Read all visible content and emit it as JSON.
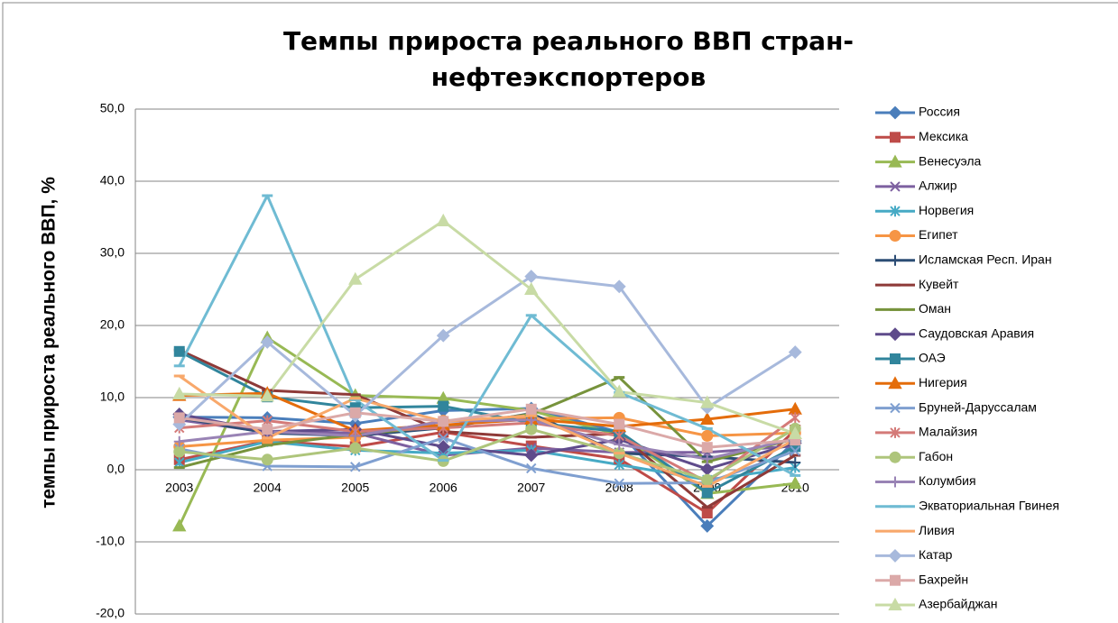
{
  "chart_data": {
    "type": "line",
    "title": "Темпы прироста реального ВВП стран-нефтеэкспортеров",
    "y_label": "темпы прироста реального ВВП, %",
    "categories": [
      "2003",
      "2004",
      "2005",
      "2006",
      "2007",
      "2008",
      "2009",
      "2010"
    ],
    "ylim": [
      -20,
      50
    ],
    "yticks": [
      {
        "value": -20,
        "label": "-20,0"
      },
      {
        "value": -10,
        "label": "-10,0"
      },
      {
        "value": 0,
        "label": "0,0"
      },
      {
        "value": 10,
        "label": "10,0"
      },
      {
        "value": 20,
        "label": "20,0"
      },
      {
        "value": 30,
        "label": "30,0"
      },
      {
        "value": 40,
        "label": "40,0"
      },
      {
        "value": 50,
        "label": "50,0"
      }
    ],
    "grid": true,
    "legend": "right",
    "series": [
      {
        "name": "Россия",
        "color": "#4a7ebb",
        "marker": "diamond",
        "values": [
          7.3,
          7.2,
          6.4,
          8.2,
          8.5,
          5.2,
          -7.8,
          4.0
        ]
      },
      {
        "name": "Мексика",
        "color": "#be4b48",
        "marker": "square",
        "values": [
          1.4,
          4.0,
          3.2,
          5.2,
          3.3,
          1.5,
          -6.0,
          5.5
        ]
      },
      {
        "name": "Венесуэла",
        "color": "#98b954",
        "marker": "triangle",
        "values": [
          -7.8,
          18.3,
          10.3,
          9.9,
          8.2,
          4.8,
          -3.3,
          -1.9
        ]
      },
      {
        "name": "Алжир",
        "color": "#7d60a0",
        "marker": "x",
        "values": [
          6.9,
          5.2,
          5.1,
          2.0,
          3.0,
          2.4,
          2.4,
          3.3
        ]
      },
      {
        "name": "Норвегия",
        "color": "#46aac5",
        "marker": "star",
        "values": [
          1.0,
          3.9,
          2.7,
          2.3,
          2.7,
          0.7,
          -1.4,
          0.3
        ]
      },
      {
        "name": "Египет",
        "color": "#f69545",
        "marker": "circle",
        "values": [
          3.2,
          4.1,
          4.5,
          6.8,
          7.1,
          7.2,
          4.7,
          5.1
        ]
      },
      {
        "name": "Исламская Респ. Иран",
        "color": "#2c4d75",
        "marker": "plus",
        "values": [
          7.2,
          5.1,
          4.7,
          5.8,
          7.8,
          2.3,
          1.8,
          1.0
        ]
      },
      {
        "name": "Кувейт",
        "color": "#8e3a38",
        "marker": "dash",
        "values": [
          16.6,
          11.0,
          10.4,
          5.3,
          4.5,
          5.0,
          -5.2,
          2.0
        ]
      },
      {
        "name": "Оман",
        "color": "#77933c",
        "marker": "dash",
        "values": [
          0.3,
          3.4,
          4.9,
          6.0,
          7.7,
          12.8,
          1.1,
          4.3
        ]
      },
      {
        "name": "Саудовская Аравия",
        "color": "#5f4b8b",
        "marker": "diamond",
        "values": [
          7.7,
          5.3,
          5.6,
          3.2,
          2.0,
          4.2,
          0.1,
          3.7
        ]
      },
      {
        "name": "ОАЭ",
        "color": "#31859c",
        "marker": "square",
        "values": [
          16.4,
          10.1,
          8.6,
          8.8,
          6.5,
          5.3,
          -3.2,
          3.2
        ]
      },
      {
        "name": "Нигерия",
        "color": "#e46c0a",
        "marker": "triangle",
        "values": [
          10.3,
          10.6,
          5.4,
          6.2,
          7.0,
          6.0,
          7.0,
          8.4
        ]
      },
      {
        "name": "Бруней-Даруссалам",
        "color": "#7f9fd0",
        "marker": "x",
        "values": [
          2.9,
          0.5,
          0.4,
          4.4,
          0.2,
          -1.9,
          -1.8,
          2.6
        ]
      },
      {
        "name": "Малайзия",
        "color": "#d47a78",
        "marker": "star",
        "values": [
          5.8,
          6.8,
          5.3,
          5.8,
          6.5,
          4.7,
          -1.7,
          7.2
        ]
      },
      {
        "name": "Габон",
        "color": "#aec57b",
        "marker": "circle",
        "values": [
          2.5,
          1.4,
          3.0,
          1.2,
          5.6,
          2.3,
          -1.4,
          5.7
        ]
      },
      {
        "name": "Колумбия",
        "color": "#9983b5",
        "marker": "plus",
        "values": [
          3.9,
          5.3,
          4.7,
          6.7,
          6.9,
          3.5,
          1.5,
          4.3
        ]
      },
      {
        "name": "Экваториальная Гвинея",
        "color": "#6fbbd3",
        "marker": "dash",
        "values": [
          14.4,
          38.0,
          9.7,
          1.3,
          21.4,
          10.7,
          5.7,
          -0.8
        ]
      },
      {
        "name": "Ливия",
        "color": "#f8a86b",
        "marker": "dash",
        "values": [
          13.0,
          4.4,
          9.9,
          6.7,
          7.5,
          2.3,
          -2.3,
          4.2
        ]
      },
      {
        "name": "Катар",
        "color": "#a7b9dc",
        "marker": "diamond",
        "values": [
          6.3,
          17.7,
          7.5,
          18.6,
          26.8,
          25.4,
          8.6,
          16.3
        ]
      },
      {
        "name": "Бахрейн",
        "color": "#dba9a8",
        "marker": "square",
        "values": [
          7.2,
          5.6,
          7.9,
          6.7,
          8.4,
          6.3,
          3.1,
          4.1
        ]
      },
      {
        "name": "Азербайджан",
        "color": "#c8dba5",
        "marker": "triangle",
        "values": [
          10.5,
          10.2,
          26.4,
          34.5,
          25.0,
          10.8,
          9.3,
          5.0
        ]
      }
    ]
  }
}
